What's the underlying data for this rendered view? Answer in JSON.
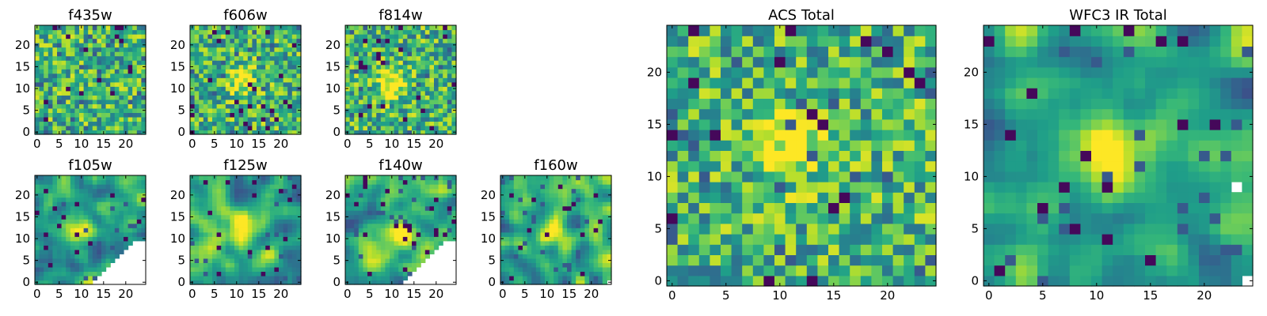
{
  "figure": {
    "description_colormap": "viridis",
    "colors": {
      "axes": "#000000",
      "missing": "#ffffff"
    }
  },
  "chart_data": [
    {
      "type": "heatmap",
      "title": "f435w",
      "grid": [
        25,
        25
      ],
      "xlim": [
        0,
        24
      ],
      "ylim": [
        0,
        24
      ],
      "xticks": [
        0,
        5,
        10,
        15,
        20
      ],
      "yticks": [
        0,
        5,
        10,
        15,
        20
      ],
      "xtick_labels": [
        "0",
        "5",
        "10",
        "15",
        "20"
      ],
      "ytick_labels": [
        "0",
        "5",
        "10",
        "15",
        "20"
      ],
      "pattern": "noise",
      "seed": 11,
      "source": null,
      "masked": "none"
    },
    {
      "type": "heatmap",
      "title": "f606w",
      "grid": [
        25,
        25
      ],
      "xlim": [
        0,
        24
      ],
      "ylim": [
        0,
        24
      ],
      "xticks": [
        0,
        5,
        10,
        15,
        20
      ],
      "yticks": [
        0,
        5,
        10,
        15,
        20
      ],
      "xtick_labels": [
        "0",
        "5",
        "10",
        "15",
        "20"
      ],
      "ytick_labels": [
        "0",
        "5",
        "10",
        "15",
        "20"
      ],
      "pattern": "noise",
      "seed": 23,
      "source": [
        11,
        12
      ],
      "masked": "none"
    },
    {
      "type": "heatmap",
      "title": "f814w",
      "grid": [
        25,
        25
      ],
      "xlim": [
        0,
        24
      ],
      "ylim": [
        0,
        24
      ],
      "xticks": [
        0,
        5,
        10,
        15,
        20
      ],
      "yticks": [
        0,
        5,
        10,
        15,
        20
      ],
      "xtick_labels": [
        "0",
        "5",
        "10",
        "15",
        "20"
      ],
      "ytick_labels": [
        "0",
        "5",
        "10",
        "15",
        "20"
      ],
      "pattern": "noise",
      "seed": 37,
      "source": [
        10,
        11
      ],
      "masked": "none"
    },
    {
      "type": "heatmap",
      "title": "f105w",
      "grid": [
        25,
        25
      ],
      "xlim": [
        0,
        24
      ],
      "ylim": [
        0,
        24
      ],
      "xticks": [
        0,
        5,
        10,
        15,
        20
      ],
      "yticks": [
        0,
        5,
        10,
        15,
        20
      ],
      "xtick_labels": [
        "0",
        "5",
        "10",
        "15",
        "20"
      ],
      "ytick_labels": [
        "0",
        "5",
        "10",
        "15",
        "20"
      ],
      "pattern": "smooth",
      "seed": 41,
      "source": [
        10,
        13
      ],
      "masked": "corner-large"
    },
    {
      "type": "heatmap",
      "title": "f125w",
      "grid": [
        25,
        25
      ],
      "xlim": [
        0,
        24
      ],
      "ylim": [
        0,
        24
      ],
      "xticks": [
        0,
        5,
        10,
        15,
        20
      ],
      "yticks": [
        0,
        5,
        10,
        15,
        20
      ],
      "xtick_labels": [
        "0",
        "5",
        "10",
        "15",
        "20"
      ],
      "ytick_labels": [
        "0",
        "5",
        "10",
        "15",
        "20"
      ],
      "pattern": "smooth",
      "seed": 53,
      "source": [
        11,
        12
      ],
      "masked": "none"
    },
    {
      "type": "heatmap",
      "title": "f140w",
      "grid": [
        25,
        25
      ],
      "xlim": [
        0,
        24
      ],
      "ylim": [
        0,
        24
      ],
      "xticks": [
        0,
        5,
        10,
        15,
        20
      ],
      "yticks": [
        0,
        5,
        10,
        15,
        20
      ],
      "xtick_labels": [
        "0",
        "5",
        "10",
        "15",
        "20"
      ],
      "ytick_labels": [
        "0",
        "5",
        "10",
        "15",
        "20"
      ],
      "pattern": "smooth",
      "seed": 67,
      "source": [
        11,
        11
      ],
      "masked": "corner-large"
    },
    {
      "type": "heatmap",
      "title": "f160w",
      "grid": [
        25,
        25
      ],
      "xlim": [
        0,
        24
      ],
      "ylim": [
        0,
        24
      ],
      "xticks": [
        0,
        5,
        10,
        15,
        20
      ],
      "yticks": [
        0,
        5,
        10,
        15,
        20
      ],
      "xtick_labels": [
        "0",
        "5",
        "10",
        "15",
        "20"
      ],
      "ytick_labels": [
        "0",
        "5",
        "10",
        "15",
        "20"
      ],
      "pattern": "smooth",
      "seed": 79,
      "source": [
        11,
        12
      ],
      "masked": "corner-tiny"
    },
    {
      "type": "heatmap",
      "title": "ACS Total",
      "grid": [
        25,
        25
      ],
      "xlim": [
        0,
        24
      ],
      "ylim": [
        0,
        24
      ],
      "xticks": [
        0,
        5,
        10,
        15,
        20
      ],
      "yticks": [
        0,
        5,
        10,
        15,
        20
      ],
      "xtick_labels": [
        "0",
        "5",
        "10",
        "15",
        "20"
      ],
      "ytick_labels": [
        "0",
        "5",
        "10",
        "15",
        "20"
      ],
      "pattern": "noise",
      "seed": 97,
      "source": [
        11,
        13
      ],
      "masked": "none"
    },
    {
      "type": "heatmap",
      "title": "WFC3 IR Total",
      "grid": [
        25,
        25
      ],
      "xlim": [
        0,
        24
      ],
      "ylim": [
        0,
        24
      ],
      "xticks": [
        0,
        5,
        10,
        15,
        20
      ],
      "yticks": [
        0,
        5,
        10,
        15,
        20
      ],
      "xtick_labels": [
        "0",
        "5",
        "10",
        "15",
        "20"
      ],
      "ytick_labels": [
        "0",
        "5",
        "10",
        "15",
        "20"
      ],
      "pattern": "smooth",
      "seed": 113,
      "source": [
        11,
        12
      ],
      "masked": "corner-small"
    }
  ]
}
